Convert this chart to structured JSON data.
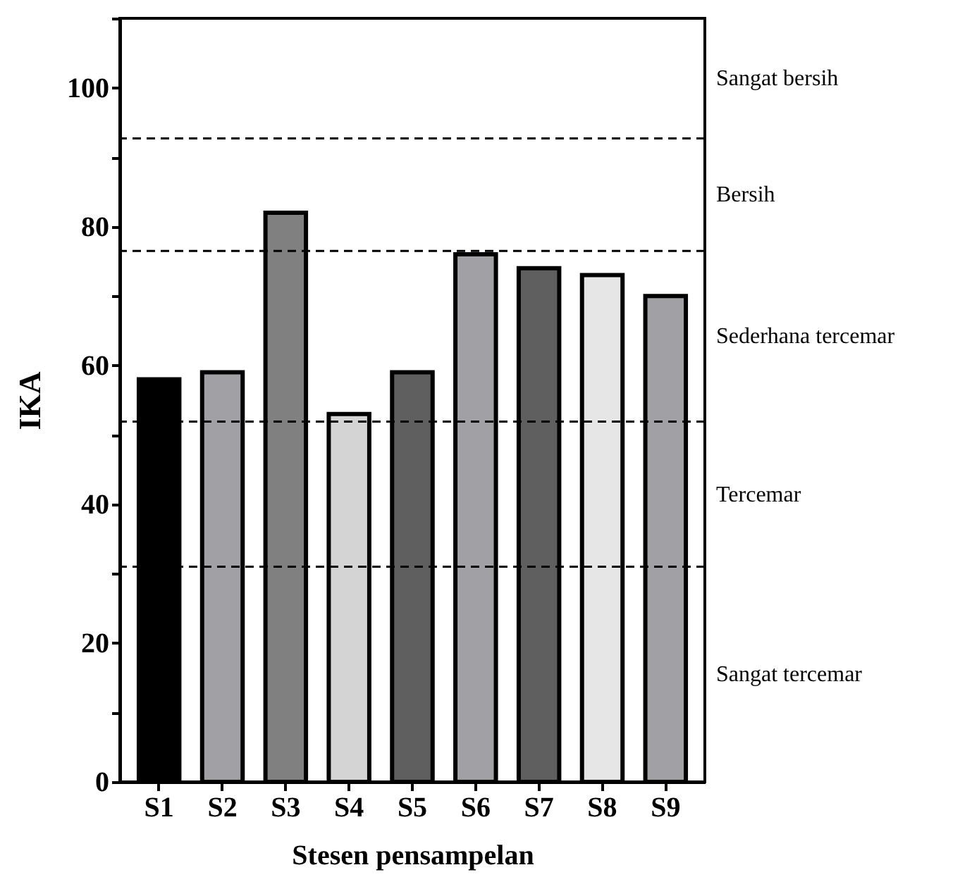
{
  "chart_data": {
    "type": "bar",
    "xlabel": "Stesen pensampelan",
    "ylabel": "IKA",
    "categories": [
      "S1",
      "S2",
      "S3",
      "S4",
      "S5",
      "S6",
      "S7",
      "S8",
      "S9"
    ],
    "values": [
      58,
      59,
      82,
      53,
      59,
      76,
      74,
      73,
      70
    ],
    "colors": [
      "#000000",
      "#a0a0a5",
      "#808080",
      "#d4d4d4",
      "#5f5f5f",
      "#a0a0a5",
      "#5f5f5f",
      "#e6e6e6",
      "#a0a0a5"
    ],
    "ylim": [
      0,
      110
    ],
    "yticks": [
      0,
      {
        "value": 10,
        "label": null
      },
      20,
      {
        "value": 30,
        "label": null
      },
      40,
      {
        "value": 50,
        "label": null
      },
      60,
      {
        "value": 70,
        "label": null
      },
      80,
      {
        "value": 90,
        "label": null
      },
      100,
      {
        "value": 110,
        "label": null
      }
    ],
    "grid": false,
    "ref_lines": [
      {
        "axis": "y",
        "value": 92.7,
        "label": null,
        "color": "#000000",
        "line_style": "dashed"
      },
      {
        "axis": "y",
        "value": 76.5,
        "label": null,
        "color": "#000000",
        "line_style": "dashed"
      },
      {
        "axis": "y",
        "value": 51.9,
        "label": null,
        "color": "#000000",
        "line_style": "dashed"
      },
      {
        "axis": "y",
        "value": 31.0,
        "label": null,
        "color": "#000000",
        "line_style": "dashed"
      }
    ],
    "annotations": [
      "Sangat bersih",
      "Bersih",
      "Sederhana tercemar",
      "Tercemar",
      "Sangat tercemar"
    ]
  }
}
